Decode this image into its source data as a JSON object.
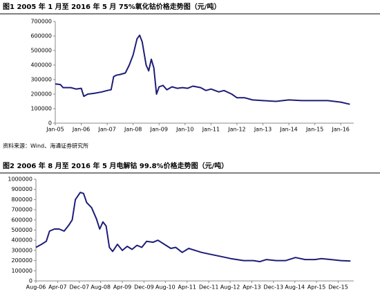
{
  "chart_data": [
    {
      "type": "line",
      "title": "图1  2005 年 1 月至 2016 年 5 月 75%氧化钴价格走势图（元/吨）",
      "x": [
        2005,
        2005.2,
        2005.3,
        2005.6,
        2005.8,
        2006,
        2006.1,
        2006.25,
        2006.5,
        2006.8,
        2007,
        2007.15,
        2007.25,
        2007.35,
        2007.5,
        2007.7,
        2007.85,
        2008,
        2008.15,
        2008.25,
        2008.35,
        2008.5,
        2008.6,
        2008.7,
        2008.8,
        2008.9,
        2009,
        2009.15,
        2009.3,
        2009.5,
        2009.7,
        2009.9,
        2010.1,
        2010.3,
        2010.6,
        2010.8,
        2011,
        2011.3,
        2011.5,
        2011.8,
        2012,
        2012.3,
        2012.6,
        2013,
        2013.5,
        2014,
        2014.5,
        2015,
        2015.5,
        2016,
        2016.35
      ],
      "series": [
        {
          "color": "#1c1c78",
          "values": [
            270000,
            265000,
            245000,
            245000,
            235000,
            240000,
            185000,
            200000,
            205000,
            215000,
            225000,
            230000,
            320000,
            330000,
            335000,
            345000,
            400000,
            470000,
            580000,
            605000,
            560000,
            400000,
            360000,
            440000,
            380000,
            200000,
            250000,
            260000,
            230000,
            250000,
            240000,
            245000,
            240000,
            255000,
            245000,
            225000,
            235000,
            215000,
            225000,
            200000,
            175000,
            175000,
            160000,
            155000,
            150000,
            160000,
            155000,
            155000,
            155000,
            145000,
            130000
          ]
        }
      ],
      "xlim": [
        2005,
        2016.5
      ],
      "xticks": [
        {
          "value": 2005,
          "label": "Jan-05"
        },
        {
          "value": 2006,
          "label": "Jan-06"
        },
        {
          "value": 2007,
          "label": "Jan-07"
        },
        {
          "value": 2008,
          "label": "Jan-08"
        },
        {
          "value": 2009,
          "label": "Jan-09"
        },
        {
          "value": 2010,
          "label": "Jan-10"
        },
        {
          "value": 2011,
          "label": "Jan-11"
        },
        {
          "value": 2012,
          "label": "Jan-12"
        },
        {
          "value": 2013,
          "label": "Jan-13"
        },
        {
          "value": 2014,
          "label": "Jan-14"
        },
        {
          "value": 2015,
          "label": "Jan-15"
        },
        {
          "value": 2016,
          "label": "Jan-16"
        }
      ],
      "ylim": [
        0,
        700000
      ],
      "yticks": [
        0,
        100000,
        200000,
        300000,
        400000,
        500000,
        600000,
        700000
      ],
      "source": "资料来源：Wind、海通证券研究所"
    },
    {
      "type": "line",
      "title": "图2  2006 年 8 月至 2016 年 5 月电解钴 99.8%价格走势图（元/吨）",
      "x": [
        2006.58,
        2006.75,
        2006.9,
        2007,
        2007.15,
        2007.3,
        2007.45,
        2007.6,
        2007.7,
        2007.8,
        2007.95,
        2008.05,
        2008.15,
        2008.3,
        2008.45,
        2008.55,
        2008.65,
        2008.75,
        2008.85,
        2008.95,
        2009.1,
        2009.25,
        2009.4,
        2009.55,
        2009.7,
        2009.85,
        2010,
        2010.2,
        2010.35,
        2010.6,
        2010.75,
        2010.9,
        2011.1,
        2011.3,
        2011.5,
        2011.7,
        2012,
        2012.3,
        2012.6,
        2013,
        2013.3,
        2013.5,
        2013.7,
        2014,
        2014.3,
        2014.6,
        2014.9,
        2015.2,
        2015.4,
        2015.7,
        2016,
        2016.3
      ],
      "series": [
        {
          "color": "#1c1c78",
          "values": [
            330000,
            360000,
            390000,
            490000,
            510000,
            510000,
            490000,
            550000,
            600000,
            800000,
            870000,
            860000,
            770000,
            720000,
            610000,
            510000,
            580000,
            540000,
            330000,
            290000,
            360000,
            300000,
            340000,
            310000,
            350000,
            330000,
            390000,
            380000,
            400000,
            350000,
            320000,
            330000,
            280000,
            320000,
            300000,
            280000,
            260000,
            240000,
            220000,
            200000,
            200000,
            190000,
            210000,
            200000,
            200000,
            230000,
            210000,
            210000,
            220000,
            210000,
            200000,
            195000
          ]
        }
      ],
      "xlim": [
        2006.58,
        2016.4
      ],
      "xticks": [
        {
          "value": 2006.58,
          "label": "Aug-06"
        },
        {
          "value": 2007.25,
          "label": "Apr-07"
        },
        {
          "value": 2007.92,
          "label": "Dec-07"
        },
        {
          "value": 2008.58,
          "label": "Aug-08"
        },
        {
          "value": 2009.25,
          "label": "Apr-09"
        },
        {
          "value": 2009.92,
          "label": "Dec-09"
        },
        {
          "value": 2010.58,
          "label": "Aug-10"
        },
        {
          "value": 2011.25,
          "label": "Apr-11"
        },
        {
          "value": 2011.92,
          "label": "Dec-11"
        },
        {
          "value": 2012.58,
          "label": "Aug-12"
        },
        {
          "value": 2013.25,
          "label": "Apr-13"
        },
        {
          "value": 2013.92,
          "label": "Dec-13"
        },
        {
          "value": 2014.58,
          "label": "Aug-14"
        },
        {
          "value": 2015.25,
          "label": "Apr-15"
        },
        {
          "value": 2015.92,
          "label": "Dec-15"
        }
      ],
      "ylim": [
        0,
        1000000
      ],
      "yticks": [
        0,
        100000,
        200000,
        300000,
        400000,
        500000,
        600000,
        700000,
        800000,
        900000,
        1000000
      ]
    }
  ]
}
